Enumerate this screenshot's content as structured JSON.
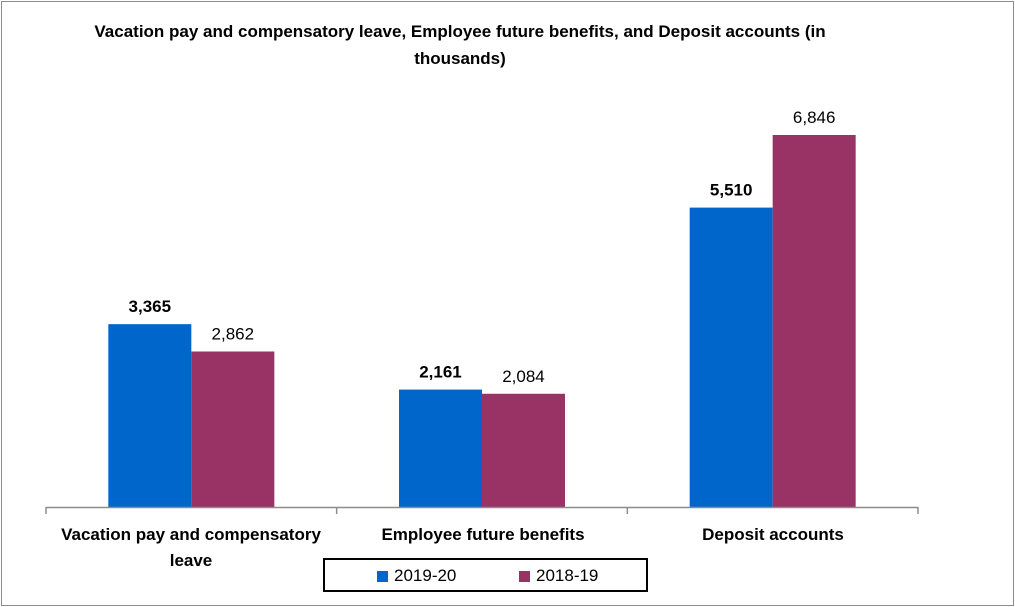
{
  "chart_data": {
    "type": "bar",
    "title": "Vacation pay and compensatory leave, Employee future benefits, and Deposit accounts (in thousands)",
    "categories": [
      "Vacation pay and compensatory leave",
      "Employee future benefits",
      "Deposit accounts"
    ],
    "series": [
      {
        "name": "2019-20",
        "color": "#0066cc",
        "values": [
          3365,
          2161,
          5510
        ],
        "labels": [
          "3,365",
          "2,161",
          "5,510"
        ],
        "label_bold": true
      },
      {
        "name": "2018-19",
        "color": "#993366",
        "values": [
          2862,
          2084,
          6846
        ],
        "labels": [
          "2,862",
          "2,084",
          "6,846"
        ],
        "label_bold": false
      }
    ],
    "ylim": [
      0,
      6846
    ],
    "grid": false,
    "legend_position": "bottom"
  }
}
